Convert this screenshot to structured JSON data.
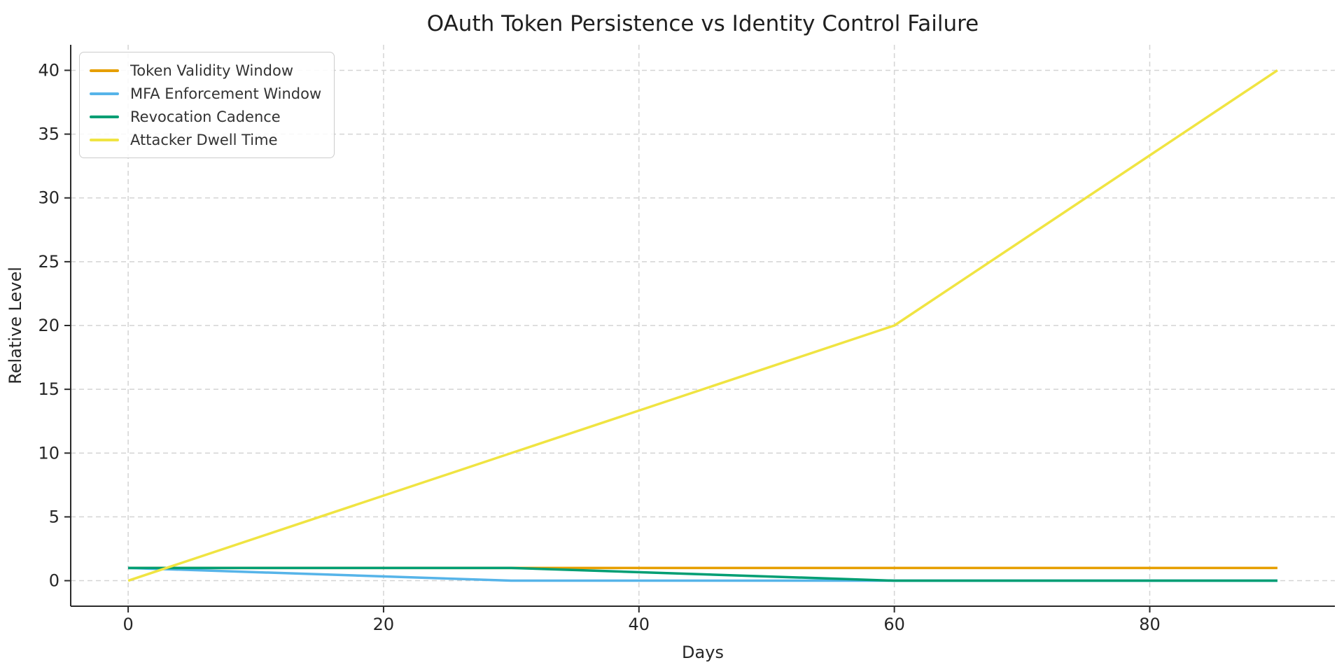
{
  "chart_data": {
    "type": "line",
    "title": "OAuth Token Persistence vs Identity Control Failure",
    "xlabel": "Days",
    "ylabel": "Relative Level",
    "x": [
      0,
      30,
      60,
      90
    ],
    "series": [
      {
        "name": "Token Validity Window",
        "color": "#E69F00",
        "values": [
          1,
          1,
          1,
          1
        ]
      },
      {
        "name": "MFA Enforcement Window",
        "color": "#56B4E9",
        "values": [
          1,
          0,
          0,
          0
        ]
      },
      {
        "name": "Revocation Cadence",
        "color": "#009E73",
        "values": [
          1,
          1,
          0,
          0
        ]
      },
      {
        "name": "Attacker Dwell Time",
        "color": "#F0E442",
        "values": [
          0,
          10,
          20,
          40
        ]
      }
    ],
    "xticks": [
      0,
      20,
      40,
      60,
      80
    ],
    "yticks": [
      0,
      5,
      10,
      15,
      20,
      25,
      30,
      35,
      40
    ],
    "xlim": [
      -4.5,
      94.5
    ],
    "ylim": [
      -2,
      42
    ],
    "grid": true,
    "grid_style": "dashed",
    "legend_position": "upper-left"
  },
  "colors": {
    "grid": "#d4d4d4",
    "spine": "#2b2b2b",
    "tick_label": "#262626",
    "title_text": "#1f1f1f",
    "background": "#ffffff"
  }
}
